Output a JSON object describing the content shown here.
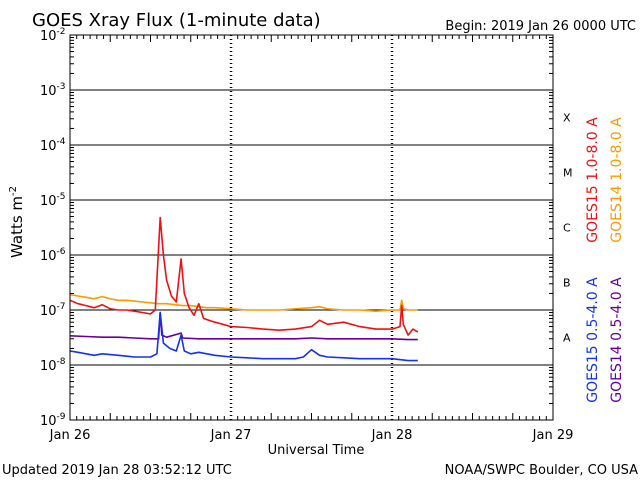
{
  "chart_data": {
    "type": "line",
    "title": "GOES Xray Flux (1-minute data)",
    "begin_label": "Begin:  2019 Jan 26 0000 UTC",
    "ylabel_main": "Watts m",
    "ylabel_exp": "-2",
    "xlabel": "Universal Time",
    "x_unit": "days since 2019 Jan 26 0000 UTC",
    "xlim": [
      0,
      3
    ],
    "ylim_log10": [
      -9,
      -2
    ],
    "x_ticks": [
      {
        "day": 0,
        "label": "Jan 26"
      },
      {
        "day": 1,
        "label": "Jan 27"
      },
      {
        "day": 2,
        "label": "Jan 28"
      },
      {
        "day": 3,
        "label": "Jan 29"
      }
    ],
    "y_ticks": [
      {
        "exp": -2,
        "mant": "10",
        "sup": "-2"
      },
      {
        "exp": -3,
        "mant": "10",
        "sup": "-3"
      },
      {
        "exp": -4,
        "mant": "10",
        "sup": "-4"
      },
      {
        "exp": -5,
        "mant": "10",
        "sup": "-5"
      },
      {
        "exp": -6,
        "mant": "10",
        "sup": "-6"
      },
      {
        "exp": -7,
        "mant": "10",
        "sup": "-7"
      },
      {
        "exp": -8,
        "mant": "10",
        "sup": "-8"
      },
      {
        "exp": -9,
        "mant": "10",
        "sup": "-9"
      }
    ],
    "flare_classes": [
      {
        "label": "X",
        "exp": -3.5
      },
      {
        "label": "M",
        "exp": -4.5
      },
      {
        "label": "C",
        "exp": -5.5
      },
      {
        "label": "B",
        "exp": -6.5
      },
      {
        "label": "A",
        "exp": -7.5
      }
    ],
    "legend": [
      {
        "name": "GOES15 1.0-8.0 A",
        "color": "#ee1111"
      },
      {
        "name": "GOES14 1.0-8.0 A",
        "color": "#ff9900"
      },
      {
        "name": "GOES15 0.5-4.0 A",
        "color": "#1133ee"
      },
      {
        "name": "GOES14 0.5-4.0 A",
        "color": "#660099"
      }
    ],
    "series": [
      {
        "name": "GOES14 1.0-8.0 A",
        "color": "#ff9900",
        "points": [
          [
            0.0,
            1.9e-07
          ],
          [
            0.05,
            1.8e-07
          ],
          [
            0.1,
            1.7e-07
          ],
          [
            0.15,
            1.6e-07
          ],
          [
            0.2,
            1.75e-07
          ],
          [
            0.25,
            1.6e-07
          ],
          [
            0.3,
            1.5e-07
          ],
          [
            0.35,
            1.5e-07
          ],
          [
            0.4,
            1.45e-07
          ],
          [
            0.45,
            1.4e-07
          ],
          [
            0.5,
            1.35e-07
          ],
          [
            0.55,
            1.3e-07
          ],
          [
            0.6,
            1.3e-07
          ],
          [
            0.65,
            1.25e-07
          ],
          [
            0.7,
            1.2e-07
          ],
          [
            0.75,
            1.2e-07
          ],
          [
            0.8,
            1.15e-07
          ],
          [
            0.85,
            1.1e-07
          ],
          [
            0.9,
            1.1e-07
          ],
          [
            1.0,
            1.05e-07
          ],
          [
            1.1,
            1e-07
          ],
          [
            1.2,
            1e-07
          ],
          [
            1.3,
            1e-07
          ],
          [
            1.4,
            1.05e-07
          ],
          [
            1.5,
            1.1e-07
          ],
          [
            1.55,
            1.15e-07
          ],
          [
            1.6,
            1.05e-07
          ],
          [
            1.7,
            1e-07
          ],
          [
            1.8,
            1e-07
          ],
          [
            1.9,
            9.5e-08
          ],
          [
            2.0,
            1e-07
          ],
          [
            2.05,
            1e-07
          ],
          [
            2.06,
            1.5e-07
          ],
          [
            2.07,
            1.05e-07
          ],
          [
            2.1,
            1e-07
          ],
          [
            2.16,
            1e-07
          ]
        ]
      },
      {
        "name": "GOES15 1.0-8.0 A",
        "color": "#ee1111",
        "points": [
          [
            0.0,
            1.5e-07
          ],
          [
            0.05,
            1.3e-07
          ],
          [
            0.1,
            1.2e-07
          ],
          [
            0.15,
            1.1e-07
          ],
          [
            0.2,
            1.25e-07
          ],
          [
            0.25,
            1.05e-07
          ],
          [
            0.3,
            1e-07
          ],
          [
            0.35,
            1e-07
          ],
          [
            0.4,
            9.5e-08
          ],
          [
            0.45,
            9e-08
          ],
          [
            0.5,
            8.5e-08
          ],
          [
            0.53,
            1e-07
          ],
          [
            0.56,
            4.8e-06
          ],
          [
            0.58,
            1e-06
          ],
          [
            0.6,
            3.5e-07
          ],
          [
            0.63,
            1.8e-07
          ],
          [
            0.66,
            1.4e-07
          ],
          [
            0.69,
            8.5e-07
          ],
          [
            0.71,
            2e-07
          ],
          [
            0.74,
            1.1e-07
          ],
          [
            0.77,
            8e-08
          ],
          [
            0.8,
            1.3e-07
          ],
          [
            0.83,
            7e-08
          ],
          [
            0.9,
            6e-08
          ],
          [
            0.95,
            5.5e-08
          ],
          [
            1.0,
            5e-08
          ],
          [
            1.1,
            4.8e-08
          ],
          [
            1.2,
            4.5e-08
          ],
          [
            1.3,
            4.3e-08
          ],
          [
            1.4,
            4.5e-08
          ],
          [
            1.5,
            5e-08
          ],
          [
            1.55,
            6.5e-08
          ],
          [
            1.6,
            5.5e-08
          ],
          [
            1.7,
            6e-08
          ],
          [
            1.8,
            5e-08
          ],
          [
            1.9,
            4.5e-08
          ],
          [
            2.0,
            4.5e-08
          ],
          [
            2.05,
            5e-08
          ],
          [
            2.06,
            1.2e-07
          ],
          [
            2.07,
            5.5e-08
          ],
          [
            2.1,
            3.5e-08
          ],
          [
            2.13,
            4.5e-08
          ],
          [
            2.16,
            4e-08
          ]
        ]
      },
      {
        "name": "GOES14 0.5-4.0 A",
        "color": "#660099",
        "points": [
          [
            0.0,
            3.4e-08
          ],
          [
            0.1,
            3.3e-08
          ],
          [
            0.2,
            3.2e-08
          ],
          [
            0.3,
            3.2e-08
          ],
          [
            0.4,
            3.1e-08
          ],
          [
            0.5,
            3e-08
          ],
          [
            0.55,
            3e-08
          ],
          [
            0.56,
            9e-08
          ],
          [
            0.57,
            3.5e-08
          ],
          [
            0.6,
            3.2e-08
          ],
          [
            0.69,
            3.8e-08
          ],
          [
            0.7,
            3.1e-08
          ],
          [
            0.8,
            3e-08
          ],
          [
            0.9,
            3e-08
          ],
          [
            1.0,
            3e-08
          ],
          [
            1.2,
            3e-08
          ],
          [
            1.4,
            3e-08
          ],
          [
            1.5,
            3.1e-08
          ],
          [
            1.6,
            3e-08
          ],
          [
            1.8,
            3e-08
          ],
          [
            2.0,
            3e-08
          ],
          [
            2.1,
            2.9e-08
          ],
          [
            2.16,
            2.9e-08
          ]
        ]
      },
      {
        "name": "GOES15 0.5-4.0 A",
        "color": "#1133ee",
        "points": [
          [
            0.0,
            1.8e-08
          ],
          [
            0.05,
            1.7e-08
          ],
          [
            0.1,
            1.6e-08
          ],
          [
            0.15,
            1.5e-08
          ],
          [
            0.2,
            1.6e-08
          ],
          [
            0.3,
            1.5e-08
          ],
          [
            0.4,
            1.4e-08
          ],
          [
            0.5,
            1.4e-08
          ],
          [
            0.54,
            1.6e-08
          ],
          [
            0.56,
            9e-08
          ],
          [
            0.58,
            2.5e-08
          ],
          [
            0.62,
            2e-08
          ],
          [
            0.66,
            1.8e-08
          ],
          [
            0.69,
            3.5e-08
          ],
          [
            0.71,
            1.8e-08
          ],
          [
            0.75,
            1.6e-08
          ],
          [
            0.8,
            1.7e-08
          ],
          [
            0.9,
            1.5e-08
          ],
          [
            1.0,
            1.4e-08
          ],
          [
            1.1,
            1.35e-08
          ],
          [
            1.2,
            1.3e-08
          ],
          [
            1.3,
            1.3e-08
          ],
          [
            1.4,
            1.3e-08
          ],
          [
            1.45,
            1.4e-08
          ],
          [
            1.5,
            1.9e-08
          ],
          [
            1.55,
            1.5e-08
          ],
          [
            1.6,
            1.4e-08
          ],
          [
            1.7,
            1.35e-08
          ],
          [
            1.8,
            1.3e-08
          ],
          [
            1.9,
            1.3e-08
          ],
          [
            2.0,
            1.3e-08
          ],
          [
            2.1,
            1.2e-08
          ],
          [
            2.16,
            1.2e-08
          ]
        ]
      }
    ]
  },
  "footer": {
    "updated": "Updated 2019 Jan 28 03:52:12 UTC",
    "credit": "NOAA/SWPC Boulder, CO USA"
  }
}
